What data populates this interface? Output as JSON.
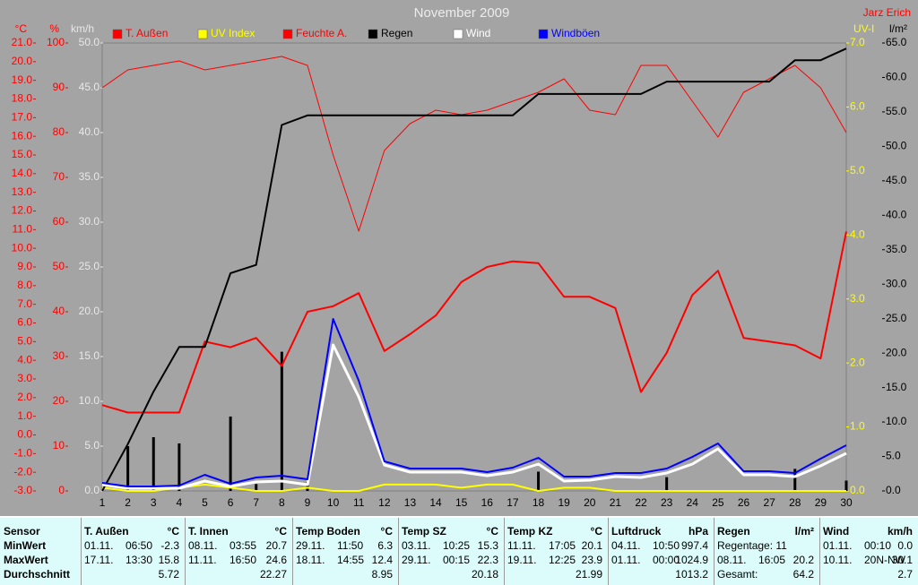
{
  "chart_data": {
    "type": "line",
    "title": "November 2009",
    "credit": "Jarz Erich",
    "x": [
      1,
      2,
      3,
      4,
      5,
      6,
      7,
      8,
      9,
      10,
      11,
      12,
      13,
      14,
      15,
      16,
      17,
      18,
      19,
      20,
      21,
      22,
      23,
      24,
      25,
      26,
      27,
      28,
      29,
      30
    ],
    "xlim": [
      1,
      30
    ],
    "y_axes": [
      {
        "label": "°C",
        "side": "left",
        "color": "#ff0000",
        "lim": [
          -3,
          21
        ],
        "ticks": [
          {
            "value": -3,
            "label": "-3.0"
          },
          {
            "value": -2,
            "label": "-2.0"
          },
          {
            "value": -1,
            "label": "-1.0"
          },
          {
            "value": 0,
            "label": "0.0"
          },
          {
            "value": 1,
            "label": "1.0"
          },
          {
            "value": 2,
            "label": "2.0"
          },
          {
            "value": 3,
            "label": "3.0"
          },
          {
            "value": 4,
            "label": "4.0"
          },
          {
            "value": 5,
            "label": "5.0"
          },
          {
            "value": 6,
            "label": "6.0"
          },
          {
            "value": 7,
            "label": "7.0"
          },
          {
            "value": 8,
            "label": "8.0"
          },
          {
            "value": 9,
            "label": "9.0"
          },
          {
            "value": 10,
            "label": "10.0"
          },
          {
            "value": 11,
            "label": "11.0"
          },
          {
            "value": 12,
            "label": "12.0"
          },
          {
            "value": 13,
            "label": "13.0"
          },
          {
            "value": 14,
            "label": "14.0"
          },
          {
            "value": 15,
            "label": "15.0"
          },
          {
            "value": 16,
            "label": "16.0"
          },
          {
            "value": 17,
            "label": "17.0"
          },
          {
            "value": 18,
            "label": "18.0"
          },
          {
            "value": 19,
            "label": "19.0"
          },
          {
            "value": 20,
            "label": "20.0"
          },
          {
            "value": 21,
            "label": "21.0"
          }
        ]
      },
      {
        "label": "%",
        "side": "left",
        "color": "#ff0000",
        "lim": [
          0,
          100
        ],
        "ticks": [
          0,
          10,
          20,
          30,
          40,
          50,
          60,
          70,
          80,
          90,
          100
        ]
      },
      {
        "label": "km/h",
        "side": "left",
        "color": "#e8e8e8",
        "lim": [
          0,
          50
        ],
        "ticks": [
          {
            "value": 0,
            "label": "0.0"
          },
          {
            "value": 5,
            "label": "5.0"
          },
          {
            "value": 10,
            "label": "10.0"
          },
          {
            "value": 15,
            "label": "15.0"
          },
          {
            "value": 20,
            "label": "20.0"
          },
          {
            "value": 25,
            "label": "25.0"
          },
          {
            "value": 30,
            "label": "30.0"
          },
          {
            "value": 35,
            "label": "35.0"
          },
          {
            "value": 40,
            "label": "40.0"
          },
          {
            "value": 45,
            "label": "45.0"
          },
          {
            "value": 50,
            "label": "50.0"
          }
        ]
      },
      {
        "label": "UV-I",
        "side": "right",
        "color": "#ffff00",
        "lim": [
          0,
          7
        ],
        "ticks": [
          {
            "value": 0,
            "label": "0.0"
          },
          {
            "value": 1,
            "label": "1.0"
          },
          {
            "value": 2,
            "label": "2.0"
          },
          {
            "value": 3,
            "label": "3.0"
          },
          {
            "value": 4,
            "label": "4.0"
          },
          {
            "value": 5,
            "label": "5.0"
          },
          {
            "value": 6,
            "label": "6.0"
          },
          {
            "value": 7,
            "label": "7.0"
          }
        ]
      },
      {
        "label": "l/m²",
        "side": "right",
        "color": "#000000",
        "lim": [
          0,
          65
        ],
        "ticks": [
          {
            "value": 0,
            "label": "0.0"
          },
          {
            "value": 5,
            "label": "5.0"
          },
          {
            "value": 10,
            "label": "10.0"
          },
          {
            "value": 15,
            "label": "15.0"
          },
          {
            "value": 20,
            "label": "20.0"
          },
          {
            "value": 25,
            "label": "25.0"
          },
          {
            "value": 30,
            "label": "30.0"
          },
          {
            "value": 35,
            "label": "35.0"
          },
          {
            "value": 40,
            "label": "40.0"
          },
          {
            "value": 45,
            "label": "45.0"
          },
          {
            "value": 50,
            "label": "50.0"
          },
          {
            "value": 55,
            "label": "55.0"
          },
          {
            "value": 60,
            "label": "60.0"
          },
          {
            "value": 65,
            "label": "65.0"
          }
        ]
      }
    ],
    "series": [
      {
        "name": "T. Außen",
        "color": "#ff0000",
        "axis": "°C",
        "line_width": 2,
        "values": [
          1.6,
          1.2,
          1.2,
          1.2,
          5.0,
          4.7,
          5.2,
          3.7,
          6.6,
          6.9,
          7.6,
          4.5,
          5.4,
          6.4,
          8.2,
          9.0,
          9.3,
          9.2,
          7.4,
          7.4,
          6.8,
          2.3,
          4.4,
          7.5,
          8.8,
          5.2,
          5.0,
          4.8,
          4.1,
          10.9
        ]
      },
      {
        "name": "UV Index",
        "color": "#ffff00",
        "axis": "UV-I",
        "line_width": 2,
        "values": [
          0.05,
          0,
          0,
          0.05,
          0.1,
          0.05,
          0,
          0,
          0.05,
          0,
          0,
          0.1,
          0.1,
          0.1,
          0.05,
          0.1,
          0.1,
          0,
          0.05,
          0.05,
          0,
          0,
          0,
          0,
          0,
          0,
          0,
          0,
          0,
          0
        ]
      },
      {
        "name": "Feuchte A.",
        "color": "#ff0000",
        "axis": "%",
        "line_width": 1,
        "values": [
          90,
          94,
          95,
          96,
          94,
          95,
          96,
          97,
          95,
          75,
          58,
          76,
          82,
          85,
          84,
          85,
          87,
          89,
          92,
          85,
          84,
          95,
          95,
          87,
          79,
          89,
          92,
          95,
          90,
          80
        ]
      },
      {
        "name": "Regen",
        "color": "#000000",
        "axis": "l/m²",
        "line_width": 2,
        "values": [
          0,
          6.8,
          14.4,
          20.9,
          20.9,
          31.6,
          32.8,
          53.1,
          54.5,
          54.5,
          54.5,
          54.5,
          54.5,
          54.5,
          54.5,
          54.5,
          54.5,
          57.6,
          57.6,
          57.6,
          57.6,
          57.6,
          59.4,
          59.4,
          59.4,
          59.4,
          59.4,
          62.5,
          62.5,
          64.2
        ],
        "bars": [
          0,
          6.5,
          7.8,
          6.9,
          0,
          10.8,
          1.0,
          20.2,
          1.3,
          0,
          0,
          0,
          0,
          0,
          0,
          0,
          0,
          2.8,
          0,
          0,
          0,
          0,
          2.0,
          0,
          0,
          0,
          0,
          3.2,
          0,
          1.5
        ]
      },
      {
        "name": "Wind",
        "color": "#ffffff",
        "axis": "km/h",
        "line_width": 3,
        "values": [
          0.7,
          0.3,
          0.3,
          0.3,
          1.1,
          0.5,
          1.0,
          1.1,
          0.7,
          16.3,
          10.5,
          2.9,
          2.1,
          2.1,
          2.1,
          1.7,
          2.1,
          3.0,
          1.1,
          1.2,
          1.6,
          1.5,
          2.0,
          3.0,
          4.7,
          1.8,
          1.8,
          1.6,
          2.8,
          4.2
        ]
      },
      {
        "name": "Windböen",
        "color": "#0000ff",
        "axis": "km/h",
        "line_width": 2,
        "values": [
          0.9,
          0.5,
          0.5,
          0.6,
          1.8,
          0.8,
          1.5,
          1.7,
          1.3,
          19.2,
          12.3,
          3.3,
          2.5,
          2.5,
          2.5,
          2.1,
          2.6,
          3.7,
          1.6,
          1.6,
          2.0,
          2.0,
          2.5,
          3.8,
          5.3,
          2.2,
          2.2,
          2.0,
          3.6,
          5.1
        ]
      }
    ]
  },
  "table": {
    "corner": "Sensor",
    "row_labels": [
      "MinWert",
      "MaxWert",
      "Durchschnitt"
    ],
    "columns": [
      {
        "name": "T. Außen",
        "unit": "°C"
      },
      {
        "name": "T. Innen",
        "unit": "°C"
      },
      {
        "name": "Temp Boden",
        "unit": "°C"
      },
      {
        "name": "Temp SZ",
        "unit": "°C"
      },
      {
        "name": "Temp KZ",
        "unit": "°C"
      },
      {
        "name": "Luftdruck",
        "unit": "hPa"
      },
      {
        "name": "Regen",
        "unit": "l/m²"
      },
      {
        "name": "Wind",
        "unit": "km/h"
      }
    ],
    "rows": [
      [
        [
          "01.11.",
          "06:50",
          "-2.3"
        ],
        [
          "08.11.",
          "03:55",
          "20.7"
        ],
        [
          "29.11.",
          "11:50",
          "6.3"
        ],
        [
          "03.11.",
          "10:25",
          "15.3"
        ],
        [
          "11.11.",
          "17:05",
          "20.1"
        ],
        [
          "04.11.",
          "10:50",
          "997.4"
        ],
        [
          "Regentage: 11"
        ],
        [
          "01.11.",
          "00:10",
          "0.0"
        ]
      ],
      [
        [
          "17.11.",
          "13:30",
          "15.8"
        ],
        [
          "11.11.",
          "16:50",
          "24.6"
        ],
        [
          "18.11.",
          "14:55",
          "12.4"
        ],
        [
          "29.11.",
          "00:15",
          "22.3"
        ],
        [
          "19.11.",
          "12:25",
          "23.9"
        ],
        [
          "01.11.",
          "00:00",
          "1024.9"
        ],
        [
          "08.11.",
          "16:05",
          "20.2"
        ],
        [
          "10.11.",
          "20N-NW",
          "30.1"
        ]
      ],
      [
        [
          "5.72"
        ],
        [
          "22.27"
        ],
        [
          "8.95"
        ],
        [
          "20.18"
        ],
        [
          "21.99"
        ],
        [
          "1013.2"
        ],
        [
          "Gesamt:",
          "64.2"
        ],
        [
          "2.7"
        ]
      ]
    ]
  }
}
